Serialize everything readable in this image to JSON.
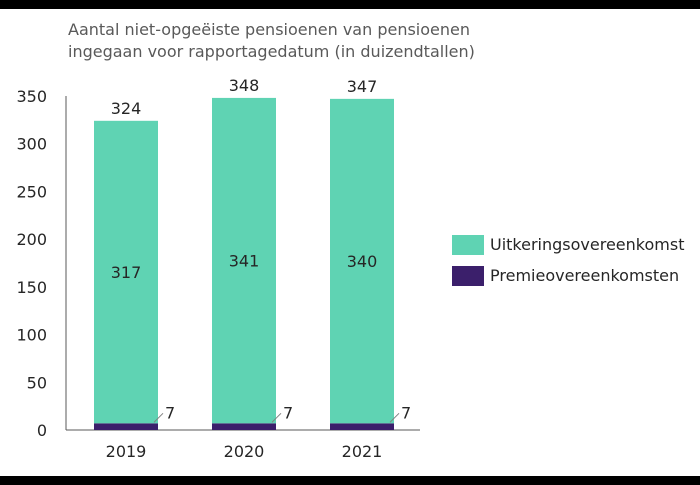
{
  "chart_data": {
    "type": "bar",
    "stacked": true,
    "title_lines": [
      "Aantal niet-opgeëiste pensioenen van pensioenen",
      "ingegaan voor rapportagedatum (in duizendtallen)"
    ],
    "categories": [
      "2019",
      "2020",
      "2021"
    ],
    "series": [
      {
        "name": "Premieovereenkomsten",
        "values": [
          7,
          7,
          7
        ],
        "color": "#3b1f6b"
      },
      {
        "name": "Uitkeringsovereenkomst",
        "values": [
          317,
          341,
          340
        ],
        "color": "#5fd3b3"
      }
    ],
    "totals": [
      324,
      348,
      347
    ],
    "yticks": [
      "0",
      "50",
      "100",
      "150",
      "200",
      "250",
      "300",
      "350"
    ],
    "ylim": [
      0,
      350
    ],
    "xlabel": "",
    "ylabel": "",
    "legend": "right",
    "grid": false
  }
}
